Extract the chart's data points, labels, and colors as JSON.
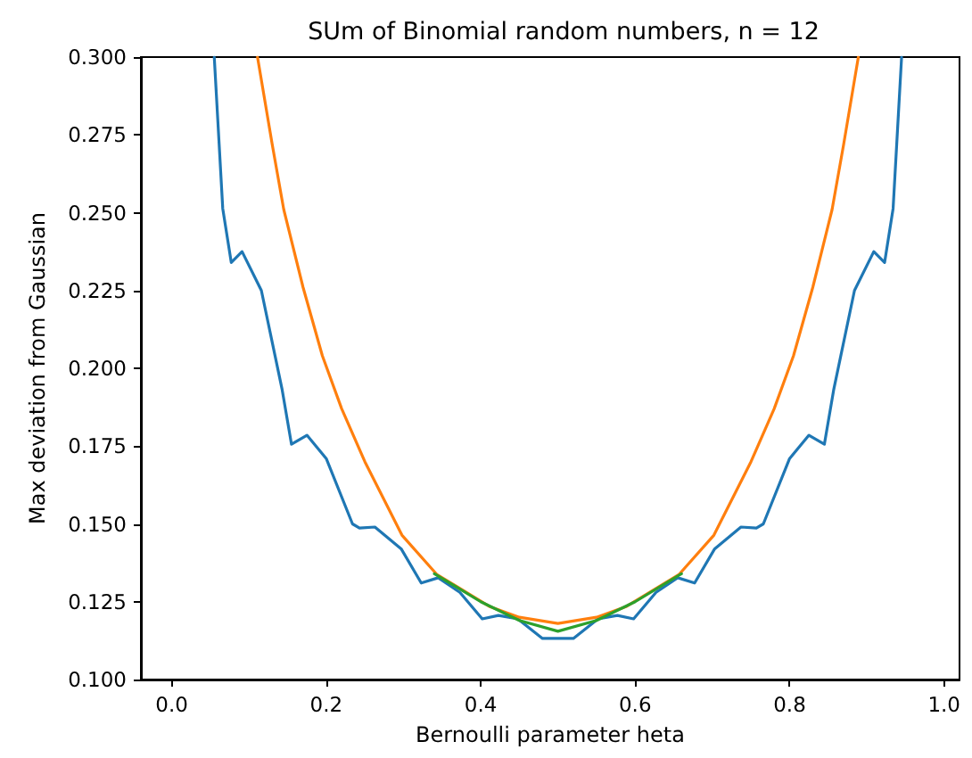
{
  "chart_data": {
    "type": "line",
    "title": "SUm of Binomial random numbers, n = 12",
    "xlabel": "Bernoulli parameter heta",
    "ylabel": "Max deviation from Gaussian",
    "xlim": [
      -0.04,
      1.02
    ],
    "xticks": [
      {
        "value": 0,
        "label": "0.0"
      },
      {
        "value": 0.2,
        "label": "0.2"
      },
      {
        "value": 0.4,
        "label": "0.4"
      },
      {
        "value": 0.6,
        "label": "0.6"
      },
      {
        "value": 0.8,
        "label": "0.8"
      },
      {
        "value": 1,
        "label": "1.0"
      }
    ],
    "ylim": [
      0.1,
      0.3
    ],
    "yticks": [
      {
        "value": 0.1,
        "label": "0.100"
      },
      {
        "value": 0.125,
        "label": "0.125"
      },
      {
        "value": 0.15,
        "label": "0.150"
      },
      {
        "value": 0.175,
        "label": "0.175"
      },
      {
        "value": 0.2,
        "label": "0.200"
      },
      {
        "value": 0.225,
        "label": "0.225"
      },
      {
        "value": 0.25,
        "label": "0.250"
      },
      {
        "value": 0.275,
        "label": "0.275"
      },
      {
        "value": 0.3,
        "label": "0.300"
      }
    ],
    "grid": false,
    "marker": "none",
    "line_style": "solid",
    "series": [
      {
        "color": "#1f77b4",
        "x": [
          0.055,
          0.066,
          0.077,
          0.091,
          0.116,
          0.134,
          0.143,
          0.155,
          0.175,
          0.2,
          0.234,
          0.243,
          0.263,
          0.297,
          0.323,
          0.345,
          0.373,
          0.402,
          0.423,
          0.448,
          0.48,
          0.5,
          0.52,
          0.552,
          0.577,
          0.598,
          0.627,
          0.655,
          0.677,
          0.703,
          0.737,
          0.757,
          0.766,
          0.8,
          0.825,
          0.845,
          0.857,
          0.866,
          0.884,
          0.909,
          0.923,
          0.934,
          0.945
        ],
        "values": [
          0.3,
          0.2513,
          0.234,
          0.2375,
          0.225,
          0.2037,
          0.193,
          0.1756,
          0.1785,
          0.171,
          0.15,
          0.1487,
          0.149,
          0.142,
          0.131,
          0.1327,
          0.128,
          0.1195,
          0.1206,
          0.1195,
          0.1132,
          0.1132,
          0.1132,
          0.1195,
          0.1206,
          0.1195,
          0.128,
          0.1327,
          0.131,
          0.142,
          0.149,
          0.1487,
          0.15,
          0.171,
          0.1785,
          0.1756,
          0.193,
          0.2037,
          0.225,
          0.2375,
          0.234,
          0.2513,
          0.3
        ]
      },
      {
        "color": "#ff7f0e",
        "x": [
          0.111,
          0.13,
          0.145,
          0.17,
          0.195,
          0.22,
          0.25,
          0.298,
          0.343,
          0.411,
          0.45,
          0.5,
          0.55,
          0.589,
          0.657,
          0.702,
          0.75,
          0.78,
          0.805,
          0.83,
          0.855,
          0.87,
          0.889
        ],
        "values": [
          0.3,
          0.272,
          0.251,
          0.226,
          0.204,
          0.187,
          0.17,
          0.1464,
          0.1338,
          0.1235,
          0.12,
          0.118,
          0.12,
          0.1235,
          0.1338,
          0.1464,
          0.17,
          0.187,
          0.204,
          0.226,
          0.251,
          0.272,
          0.3
        ]
      },
      {
        "color": "#2ca02c",
        "x": [
          0.34,
          0.4,
          0.45,
          0.5,
          0.55,
          0.6,
          0.66
        ],
        "values": [
          0.134,
          0.125,
          0.119,
          0.1155,
          0.119,
          0.125,
          0.134
        ]
      }
    ]
  }
}
